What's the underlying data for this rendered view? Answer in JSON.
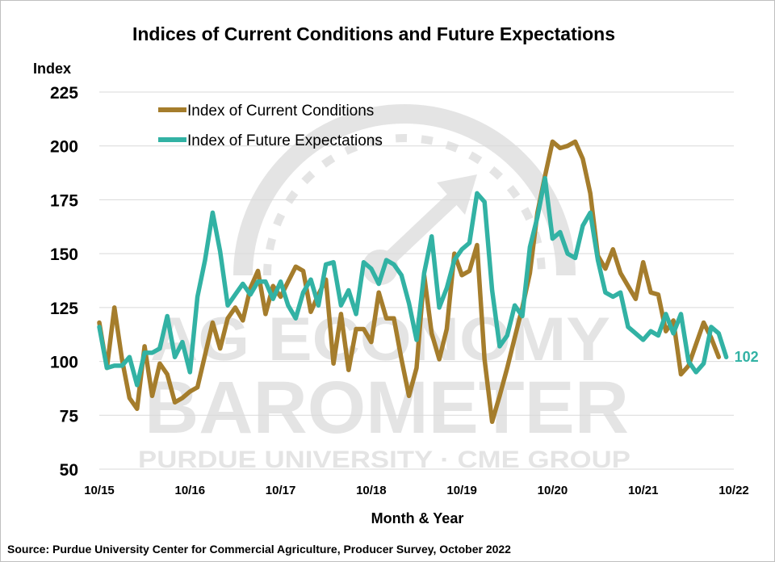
{
  "chart_data": {
    "type": "line",
    "title": "Indices of Current Conditions and Future Expectations",
    "ylabel": "Index",
    "xlabel": "Month & Year",
    "ylim": [
      50,
      225
    ],
    "yticks": [
      50,
      75,
      100,
      125,
      150,
      175,
      200,
      225
    ],
    "xlim": [
      "2015-10",
      "2022-10"
    ],
    "xtick_labels": [
      "10/15",
      "10/16",
      "10/17",
      "10/18",
      "10/19",
      "10/20",
      "10/21",
      "10/22"
    ],
    "grid": true,
    "legend": "top-left",
    "series": [
      {
        "name": "Index of Current Conditions",
        "color": "#a57d2c",
        "points": [
          [
            "2015-10",
            118
          ],
          [
            "2015-11",
            97
          ],
          [
            "2015-12",
            125
          ],
          [
            "2016-01",
            101
          ],
          [
            "2016-02",
            83
          ],
          [
            "2016-03",
            78
          ],
          [
            "2016-04",
            107
          ],
          [
            "2016-05",
            84
          ],
          [
            "2016-06",
            99
          ],
          [
            "2016-07",
            94
          ],
          [
            "2016-08",
            81
          ],
          [
            "2016-09",
            83
          ],
          [
            "2016-10",
            86
          ],
          [
            "2016-11",
            88
          ],
          [
            "2016-12",
            103
          ],
          [
            "2017-01",
            118
          ],
          [
            "2017-02",
            106
          ],
          [
            "2017-03",
            120
          ],
          [
            "2017-04",
            125
          ],
          [
            "2017-05",
            119
          ],
          [
            "2017-06",
            134
          ],
          [
            "2017-07",
            142
          ],
          [
            "2017-08",
            122
          ],
          [
            "2017-09",
            135
          ],
          [
            "2017-10",
            130
          ],
          [
            "2017-11",
            137
          ],
          [
            "2017-12",
            144
          ],
          [
            "2018-01",
            142
          ],
          [
            "2018-02",
            123
          ],
          [
            "2018-03",
            131
          ],
          [
            "2018-04",
            138
          ],
          [
            "2018-05",
            99
          ],
          [
            "2018-06",
            122
          ],
          [
            "2018-07",
            96
          ],
          [
            "2018-08",
            115
          ],
          [
            "2018-09",
            115
          ],
          [
            "2018-10",
            109
          ],
          [
            "2018-11",
            132
          ],
          [
            "2018-12",
            120
          ],
          [
            "2019-01",
            120
          ],
          [
            "2019-02",
            101
          ],
          [
            "2019-03",
            84
          ],
          [
            "2019-04",
            97
          ],
          [
            "2019-05",
            140
          ],
          [
            "2019-06",
            113
          ],
          [
            "2019-07",
            101
          ],
          [
            "2019-08",
            115
          ],
          [
            "2019-09",
            150
          ],
          [
            "2019-10",
            140
          ],
          [
            "2019-11",
            142
          ],
          [
            "2019-12",
            154
          ],
          [
            "2020-01",
            101
          ],
          [
            "2020-02",
            72
          ],
          [
            "2020-03",
            84
          ],
          [
            "2020-04",
            97
          ],
          [
            "2020-05",
            111
          ],
          [
            "2020-06",
            125
          ],
          [
            "2020-07",
            141
          ],
          [
            "2020-08",
            169
          ],
          [
            "2020-09",
            186
          ],
          [
            "2020-10",
            202
          ],
          [
            "2020-11",
            199
          ],
          [
            "2020-12",
            200
          ],
          [
            "2021-01",
            202
          ],
          [
            "2021-02",
            194
          ],
          [
            "2021-03",
            178
          ],
          [
            "2021-04",
            149
          ],
          [
            "2021-05",
            143
          ],
          [
            "2021-06",
            152
          ],
          [
            "2021-07",
            141
          ],
          [
            "2021-08",
            135
          ],
          [
            "2021-09",
            129
          ],
          [
            "2021-10",
            146
          ],
          [
            "2021-11",
            132
          ],
          [
            "2021-12",
            131
          ],
          [
            "2022-01",
            114
          ],
          [
            "2022-02",
            119
          ],
          [
            "2022-03",
            94
          ],
          [
            "2022-04",
            98
          ],
          [
            "2022-05",
            108
          ],
          [
            "2022-06",
            118
          ],
          [
            "2022-07",
            111
          ],
          [
            "2022-08",
            102
          ]
        ]
      },
      {
        "name": "Index of Future Expectations",
        "color": "#32b2a4",
        "points": [
          [
            "2015-10",
            116
          ],
          [
            "2015-11",
            97
          ],
          [
            "2015-12",
            98
          ],
          [
            "2016-01",
            98
          ],
          [
            "2016-02",
            102
          ],
          [
            "2016-03",
            89
          ],
          [
            "2016-04",
            104
          ],
          [
            "2016-05",
            104
          ],
          [
            "2016-06",
            106
          ],
          [
            "2016-07",
            121
          ],
          [
            "2016-08",
            102
          ],
          [
            "2016-09",
            109
          ],
          [
            "2016-10",
            95
          ],
          [
            "2016-11",
            130
          ],
          [
            "2016-12",
            147
          ],
          [
            "2017-01",
            169
          ],
          [
            "2017-02",
            151
          ],
          [
            "2017-03",
            126
          ],
          [
            "2017-04",
            131
          ],
          [
            "2017-05",
            136
          ],
          [
            "2017-06",
            131
          ],
          [
            "2017-07",
            137
          ],
          [
            "2017-08",
            137
          ],
          [
            "2017-09",
            129
          ],
          [
            "2017-10",
            137
          ],
          [
            "2017-11",
            126
          ],
          [
            "2017-12",
            120
          ],
          [
            "2018-01",
            132
          ],
          [
            "2018-02",
            138
          ],
          [
            "2018-03",
            126
          ],
          [
            "2018-04",
            145
          ],
          [
            "2018-05",
            146
          ],
          [
            "2018-06",
            126
          ],
          [
            "2018-07",
            133
          ],
          [
            "2018-08",
            122
          ],
          [
            "2018-09",
            146
          ],
          [
            "2018-10",
            143
          ],
          [
            "2018-11",
            136
          ],
          [
            "2018-12",
            147
          ],
          [
            "2019-01",
            145
          ],
          [
            "2019-02",
            140
          ],
          [
            "2019-03",
            127
          ],
          [
            "2019-04",
            110
          ],
          [
            "2019-05",
            141
          ],
          [
            "2019-06",
            158
          ],
          [
            "2019-07",
            125
          ],
          [
            "2019-08",
            134
          ],
          [
            "2019-09",
            147
          ],
          [
            "2019-10",
            152
          ],
          [
            "2019-11",
            155
          ],
          [
            "2019-12",
            178
          ],
          [
            "2020-01",
            174
          ],
          [
            "2020-02",
            133
          ],
          [
            "2020-03",
            107
          ],
          [
            "2020-04",
            112
          ],
          [
            "2020-05",
            126
          ],
          [
            "2020-06",
            121
          ],
          [
            "2020-07",
            153
          ],
          [
            "2020-08",
            167
          ],
          [
            "2020-09",
            185
          ],
          [
            "2020-10",
            157
          ],
          [
            "2020-11",
            160
          ],
          [
            "2020-12",
            150
          ],
          [
            "2021-01",
            148
          ],
          [
            "2021-02",
            163
          ],
          [
            "2021-03",
            169
          ],
          [
            "2021-04",
            147
          ],
          [
            "2021-05",
            132
          ],
          [
            "2021-06",
            130
          ],
          [
            "2021-07",
            132
          ],
          [
            "2021-08",
            116
          ],
          [
            "2021-09",
            113
          ],
          [
            "2021-10",
            110
          ],
          [
            "2021-11",
            114
          ],
          [
            "2021-12",
            112
          ],
          [
            "2022-01",
            122
          ],
          [
            "2022-02",
            113
          ],
          [
            "2022-03",
            122
          ],
          [
            "2022-04",
            100
          ],
          [
            "2022-05",
            95
          ],
          [
            "2022-06",
            99
          ],
          [
            "2022-07",
            116
          ],
          [
            "2022-08",
            113
          ],
          [
            "2022-09",
            102
          ]
        ]
      }
    ],
    "end_label": "102",
    "source": "Source: Purdue University Center for Commercial Agriculture, Producer Survey, October 2022",
    "watermark": {
      "line1": "AG ECONOMY",
      "line2": "BAROMETER",
      "line3": "PURDUE UNIVERSITY · CME GROUP"
    }
  }
}
